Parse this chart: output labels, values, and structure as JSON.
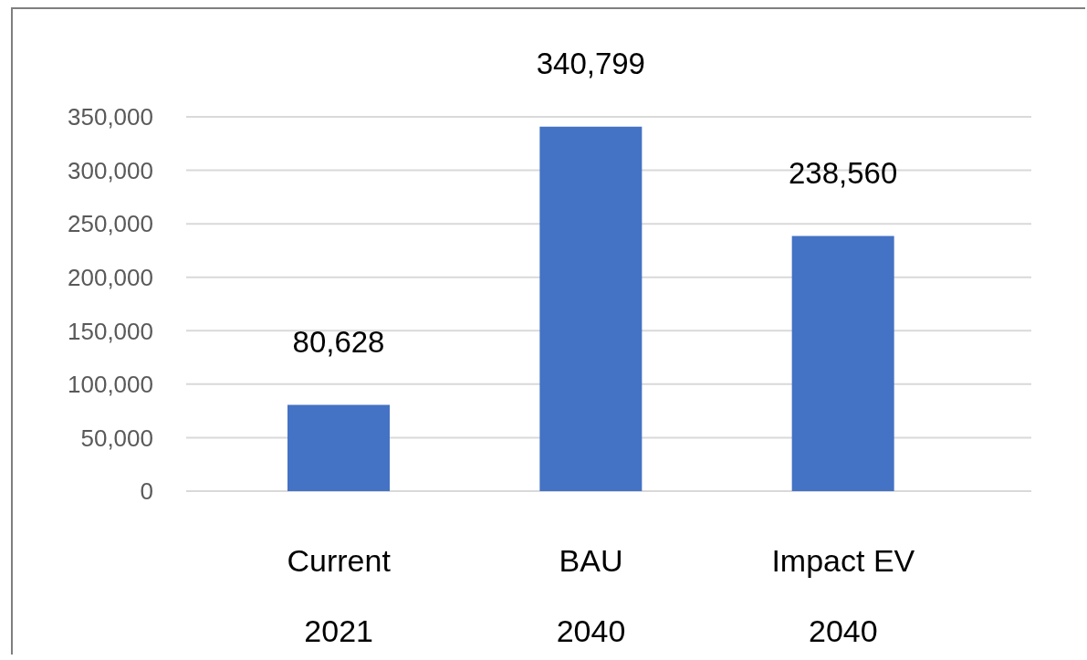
{
  "chart_data": {
    "type": "bar",
    "categories": [
      "Current\n2021",
      "BAU\n2040",
      "Impact EV\n2040"
    ],
    "values": [
      80628,
      340799,
      238560
    ],
    "color": "#4472c4",
    "value_labels": [
      "80,628",
      "340,799",
      "238,560"
    ],
    "ylim": [
      0,
      350000
    ],
    "yticks": [
      0,
      {
        "value": 50000,
        "label": "50,000"
      },
      {
        "value": 100000,
        "label": "100,000"
      },
      {
        "value": 150000,
        "label": "150,000"
      },
      {
        "value": 200000,
        "label": "200,000"
      },
      {
        "value": 250000,
        "label": "250,000"
      },
      {
        "value": 300000,
        "label": "300,000"
      },
      {
        "value": 350000,
        "label": "350,000"
      }
    ],
    "grid": "y"
  }
}
